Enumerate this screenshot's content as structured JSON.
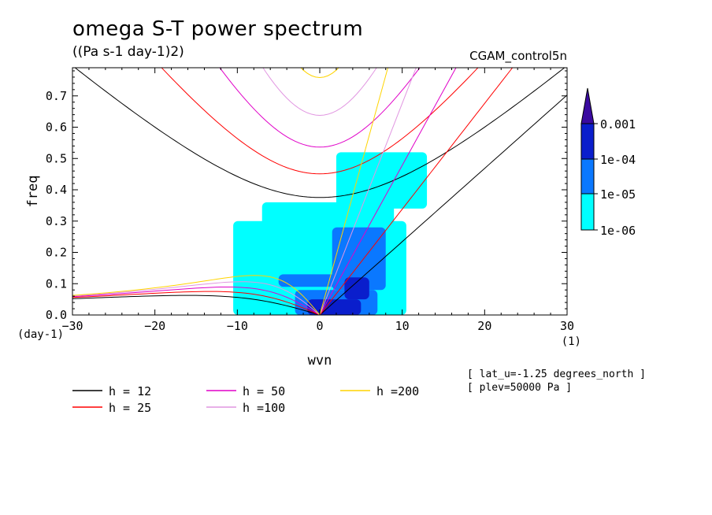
{
  "title": "omega S-T power spectrum",
  "units": "((Pa s-1 day-1)2)",
  "dataset": "CGAM_control5n",
  "info": [
    "[ lat_u=-1.25 degrees_north ]",
    "[ plev=50000 Pa ]"
  ],
  "colors": {
    "level1": "#00ffff",
    "level2": "#0a78ff",
    "level3": "#0a1ecc",
    "level4": "#3a0aa0",
    "h12": "#000000",
    "h25": "#ff0000",
    "h50": "#e000c8",
    "h100": "#e196e1",
    "h200": "#ffd400"
  },
  "chart_data": {
    "type": "heatmap",
    "xlabel": "wvn",
    "ylabel": "freq",
    "x_units": "(1)",
    "y_units": "(day-1)",
    "xlim": [
      -30,
      30
    ],
    "ylim": [
      0,
      0.79
    ],
    "xticks": [
      -30,
      -20,
      -10,
      0,
      10,
      20,
      30
    ],
    "yticks": [
      0.0,
      0.1,
      0.2,
      0.3,
      0.4,
      0.5,
      0.6,
      0.7
    ],
    "ytick_labels": [
      "0.0",
      "0.1",
      "0.2",
      "0.3",
      "0.4",
      "0.5",
      "0.6",
      "0.7"
    ],
    "colorbar": {
      "labels": [
        "1e-06",
        "1e-05",
        "1e-04",
        "0.001"
      ],
      "levels": [
        1e-06,
        1e-05,
        0.0001,
        0.001
      ]
    },
    "power_regions": [
      {
        "level": 1,
        "x": [
          -10.5,
          10.5
        ],
        "y": [
          0.0,
          0.3
        ]
      },
      {
        "level": 1,
        "x": [
          -7.0,
          9.0
        ],
        "y": [
          0.28,
          0.36
        ]
      },
      {
        "level": 1,
        "x": [
          2.0,
          13.0
        ],
        "y": [
          0.34,
          0.52
        ]
      },
      {
        "level": 2,
        "x": [
          -5.0,
          2.0
        ],
        "y": [
          0.09,
          0.13
        ]
      },
      {
        "level": 2,
        "x": [
          -3.0,
          7.0
        ],
        "y": [
          0.0,
          0.08
        ]
      },
      {
        "level": 2,
        "x": [
          1.5,
          8.0
        ],
        "y": [
          0.08,
          0.28
        ]
      },
      {
        "level": 3,
        "x": [
          -1.5,
          5.0
        ],
        "y": [
          0.0,
          0.05
        ]
      },
      {
        "level": 3,
        "x": [
          3.0,
          6.0
        ],
        "y": [
          0.05,
          0.12
        ]
      }
    ],
    "dispersion_curves": [
      {
        "name": "h = 12",
        "depth": 12
      },
      {
        "name": "h = 25",
        "depth": 25
      },
      {
        "name": "h = 50",
        "depth": 50
      },
      {
        "name": "h =100",
        "depth": 100
      },
      {
        "name": "h =200",
        "depth": 200
      }
    ]
  }
}
